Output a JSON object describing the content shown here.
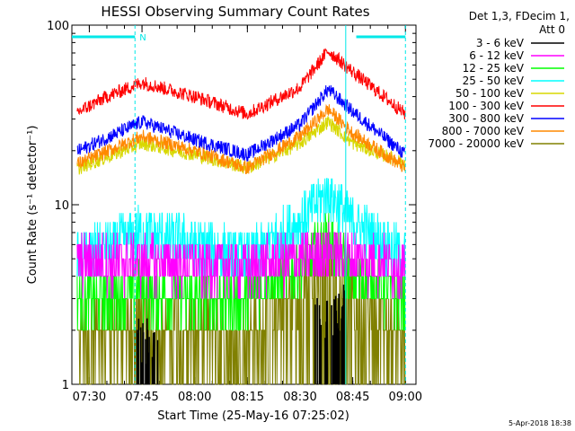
{
  "chart_data": {
    "type": "line",
    "title": "HESSI Observing Summary Count Rates",
    "xlabel": "Start Time (25-May-16 07:25:02)",
    "ylabel": "Count Rate (s⁻¹ detector⁻¹)",
    "yscale": "log",
    "xlim": [
      "07:25:02",
      "09:03:00"
    ],
    "ylim": [
      1,
      100
    ],
    "grid": false,
    "legend_position": "right",
    "x_ticks": [
      "07:30",
      "07:45",
      "08:00",
      "08:15",
      "08:30",
      "08:45",
      "09:00"
    ],
    "y_tick_labels": [
      "1",
      "10",
      "100"
    ],
    "legend_header": [
      "Det 1,3, FDecim 1,",
      "Att 0"
    ],
    "series": [
      {
        "name": "3 - 6 keV",
        "color": "#000000",
        "x": [
          "07:45",
          "08:38",
          "08:42"
        ],
        "y": [
          1.8,
          2.6,
          2.8
        ]
      },
      {
        "name": "6 - 12 keV",
        "color": "#ff00ff",
        "x": [
          "07:45",
          "08:00",
          "08:15",
          "08:30",
          "08:38",
          "08:45",
          "09:00"
        ],
        "y": [
          4.8,
          4.6,
          4.5,
          5.0,
          5.5,
          5.0,
          4.5
        ]
      },
      {
        "name": "12 - 25 keV",
        "color": "#00ff00",
        "x": [
          "07:27",
          "07:45",
          "08:00",
          "08:15",
          "08:30",
          "08:38",
          "08:45",
          "09:00"
        ],
        "y": [
          3.0,
          3.3,
          3.0,
          3.0,
          4.5,
          6.5,
          4.0,
          3.0
        ]
      },
      {
        "name": "25 - 50 keV",
        "color": "#00ffff",
        "x": [
          "07:27",
          "07:45",
          "08:00",
          "08:15",
          "08:30",
          "08:38",
          "08:45",
          "09:00"
        ],
        "y": [
          5.0,
          7.0,
          6.0,
          5.0,
          8.0,
          12.0,
          8.0,
          5.0
        ]
      },
      {
        "name": "50 - 100 keV",
        "color": "#d8d800",
        "x": [
          "07:27",
          "07:45",
          "08:00",
          "08:15",
          "08:30",
          "08:38",
          "08:45",
          "09:00"
        ],
        "y": [
          16,
          22,
          19,
          16,
          22,
          29,
          22,
          17
        ]
      },
      {
        "name": "100 - 300 keV",
        "color": "#ff0000",
        "x": [
          "07:27",
          "07:35",
          "07:45",
          "08:00",
          "08:15",
          "08:30",
          "08:38",
          "08:45",
          "09:00"
        ],
        "y": [
          33,
          40,
          48,
          40,
          32,
          45,
          72,
          55,
          32
        ]
      },
      {
        "name": "300 - 800 keV",
        "color": "#0000ff",
        "x": [
          "07:27",
          "07:45",
          "08:00",
          "08:15",
          "08:30",
          "08:38",
          "08:45",
          "09:00"
        ],
        "y": [
          20,
          29,
          23,
          19,
          28,
          44,
          33,
          19
        ]
      },
      {
        "name": "800 - 7000 keV",
        "color": "#ff8800",
        "x": [
          "07:27",
          "07:45",
          "08:00",
          "08:15",
          "08:30",
          "08:38",
          "08:45",
          "09:00"
        ],
        "y": [
          17,
          24,
          20,
          16,
          24,
          34,
          25,
          16
        ]
      },
      {
        "name": "7000 - 20000 keV",
        "color": "#808000",
        "x": [
          "07:27",
          "07:45",
          "08:00",
          "08:15",
          "08:30",
          "08:38",
          "08:45",
          "09:00"
        ],
        "y": [
          2.0,
          2.3,
          2.2,
          2.0,
          3.5,
          5.5,
          3.0,
          2.0
        ]
      }
    ],
    "annotations": {
      "flag_label": "N",
      "flag_color": "#00e8e8",
      "flag_intervals": [
        [
          "07:25:02",
          "07:43:00"
        ],
        [
          "08:46:00",
          "09:00:00"
        ]
      ],
      "vertical_markers": [
        "07:43:00",
        "08:43:00",
        "09:00:00"
      ]
    },
    "timestamp": "5-Apr-2018 18:38"
  }
}
